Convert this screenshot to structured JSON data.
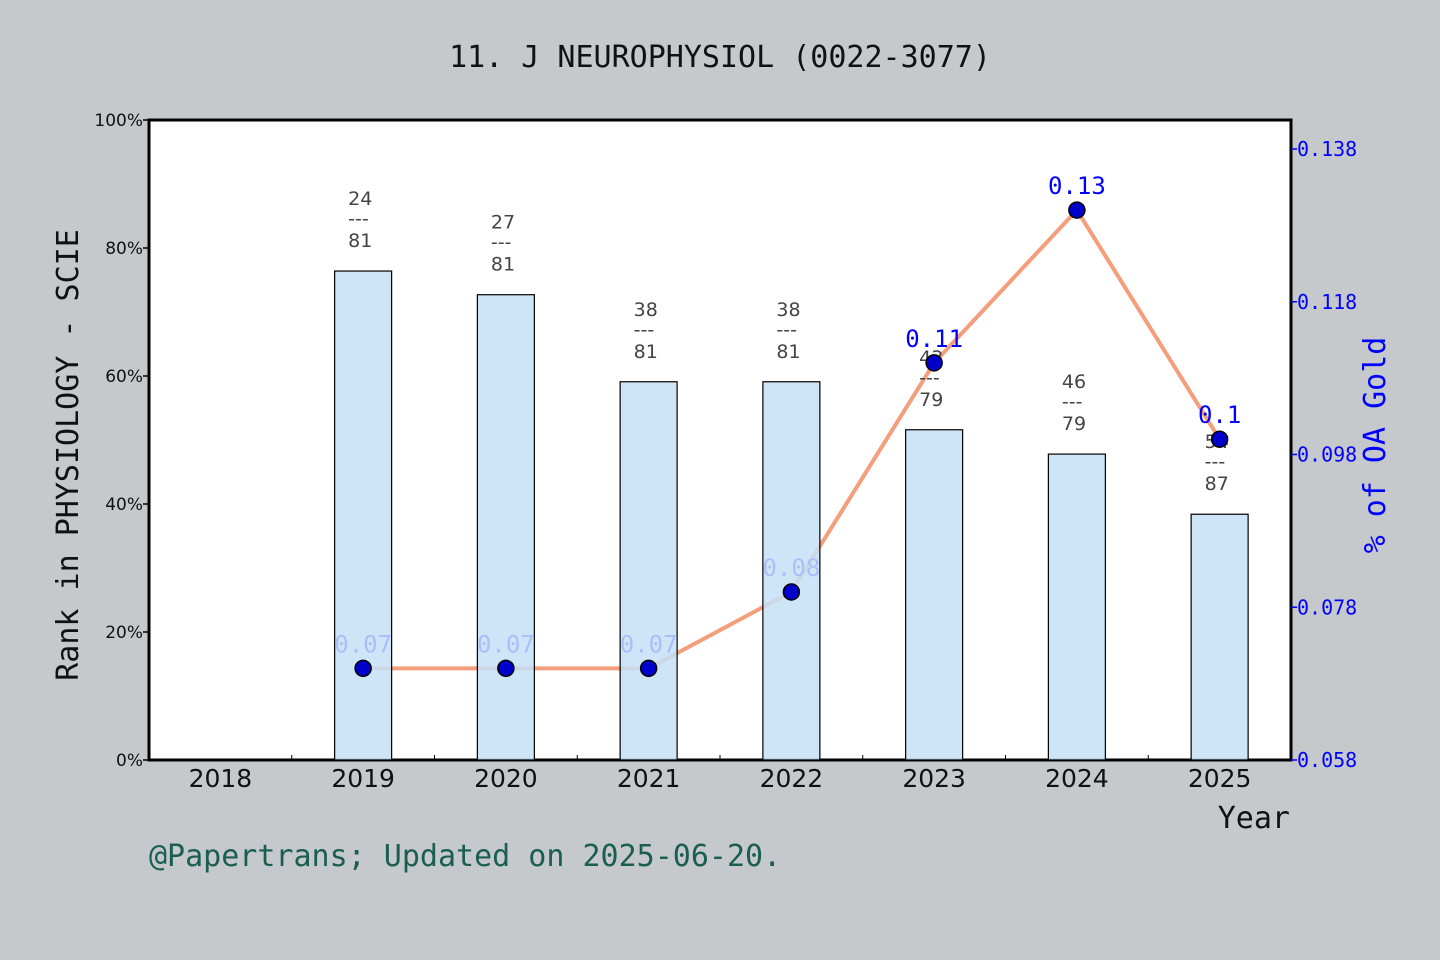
{
  "chart_data": {
    "type": "bar+line",
    "title": "11. J NEUROPHYSIOL (0022-3077)",
    "xlabel": "Year",
    "ylabel": "Rank in PHYSIOLOGY - SCIE",
    "y2label": "% of OA Gold",
    "categories": [
      "2018",
      "2019",
      "2020",
      "2021",
      "2022",
      "2023",
      "2024",
      "2025"
    ],
    "ylim": [
      0,
      100
    ],
    "yticks": [
      "0%",
      "20%",
      "40%",
      "60%",
      "80%",
      "100%"
    ],
    "y2lim": [
      0.058,
      0.138
    ],
    "y2ticks": [
      "0.058",
      "0.078",
      "0.098",
      "0.118",
      "0.138"
    ],
    "bars": {
      "values": [
        null,
        76.4,
        72.7,
        59.1,
        59.1,
        51.6,
        47.8,
        38.4
      ],
      "rank": [
        null,
        "24",
        "27",
        "38",
        "38",
        "43",
        "46",
        "54"
      ],
      "total": [
        null,
        "81",
        "81",
        "81",
        "81",
        "79",
        "79",
        "87"
      ],
      "separator": "---"
    },
    "line": {
      "values": [
        null,
        0.07,
        0.07,
        0.07,
        0.08,
        0.11,
        0.13,
        0.1
      ],
      "labels": [
        null,
        "0.07",
        "0.07",
        "0.07",
        "0.08",
        "0.11",
        "0.13",
        "0.1"
      ]
    },
    "grid": false,
    "colors": {
      "bar": "#c5e0f7",
      "line": "#f59e7c",
      "marker": "#0000cc",
      "axis2": "#0000ff",
      "footer": "#1a5e52"
    }
  },
  "footer": "@Papertrans; Updated on 2025-06-20."
}
